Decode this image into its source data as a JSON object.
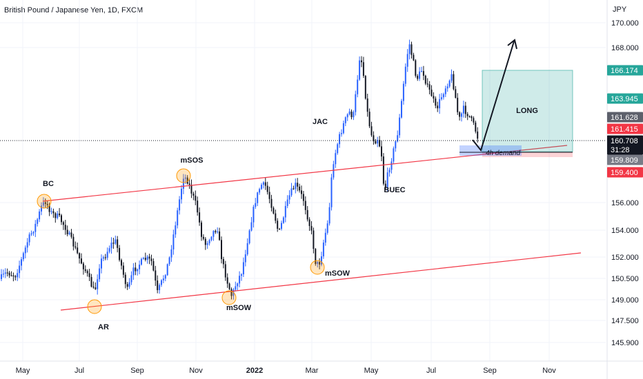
{
  "header": {
    "symbol_title": "British Pound / Japanese Yen, 1D, FXCM",
    "currency": "JPY"
  },
  "chart_data": {
    "type": "candlestick",
    "title": "British Pound / Japanese Yen, 1D, FXCM",
    "y_axis_unit": "JPY",
    "y_ticks": [
      "170.000",
      "168.000",
      "156.000",
      "154.000",
      "152.000",
      "150.500",
      "149.000",
      "147.500",
      "145.900"
    ],
    "x_ticks": [
      "May",
      "Jul",
      "Sep",
      "Nov",
      "2022",
      "Mar",
      "May",
      "Jul",
      "Sep",
      "Nov"
    ],
    "price_tags": [
      {
        "label": "166.174",
        "role": "target",
        "color": "#26a69a"
      },
      {
        "label": "163.945",
        "role": "price",
        "color": "#26a69a"
      },
      {
        "label": "161.628",
        "role": "high",
        "color": "#5d606b"
      },
      {
        "label": "161.415",
        "role": "open",
        "color": "#f23645"
      },
      {
        "label": "160.708",
        "role": "last",
        "color": "#131722",
        "sub": "31:28"
      },
      {
        "label": "159.809",
        "role": "low",
        "color": "#787b86"
      },
      {
        "label": "159.400",
        "role": "stop",
        "color": "#f23645"
      }
    ],
    "annotations": [
      "BC",
      "AR",
      "mSOS",
      "mSOW",
      "mSOW",
      "JAC",
      "BUEC",
      "4h demand",
      "LONG"
    ],
    "colors": {
      "up": "#2962ff",
      "down": "#131722",
      "channel": "#f23645",
      "marker": "#ff9800",
      "long_zone": "#26a69a"
    }
  }
}
